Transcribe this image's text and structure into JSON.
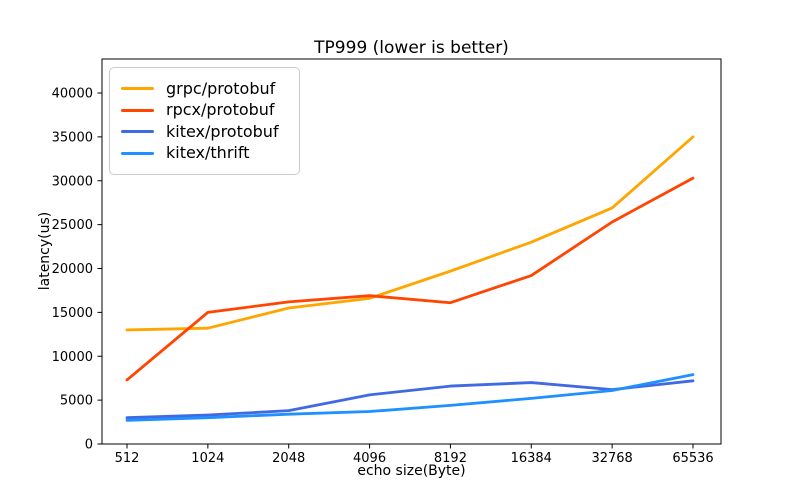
{
  "chart_data": {
    "type": "line",
    "title": "TP999 (lower is better)",
    "xlabel": "echo size(Byte)",
    "ylabel": "latency(us)",
    "categories": [
      "512",
      "1024",
      "2048",
      "4096",
      "8192",
      "16384",
      "32768",
      "65536"
    ],
    "yticks": [
      "0",
      "5000",
      "10000",
      "15000",
      "20000",
      "25000",
      "30000",
      "35000",
      "40000"
    ],
    "ylim": [
      0,
      43875
    ],
    "grid": false,
    "legend_position": "upper left",
    "series": [
      {
        "name": "grpc/protobuf",
        "color": "#ffa500",
        "values": [
          13000,
          13200,
          15500,
          16600,
          19700,
          23000,
          26900,
          35000
        ]
      },
      {
        "name": "rpcx/protobuf",
        "color": "#ff4500",
        "values": [
          7300,
          15000,
          16200,
          16900,
          16100,
          19200,
          25300,
          30300
        ]
      },
      {
        "name": "kitex/protobuf",
        "color": "#4169e1",
        "values": [
          3000,
          3300,
          3800,
          5600,
          6600,
          7000,
          6200,
          7200
        ]
      },
      {
        "name": "kitex/thrift",
        "color": "#1e90ff",
        "values": [
          2700,
          3000,
          3400,
          3700,
          4400,
          5200,
          6100,
          7900
        ]
      }
    ]
  }
}
